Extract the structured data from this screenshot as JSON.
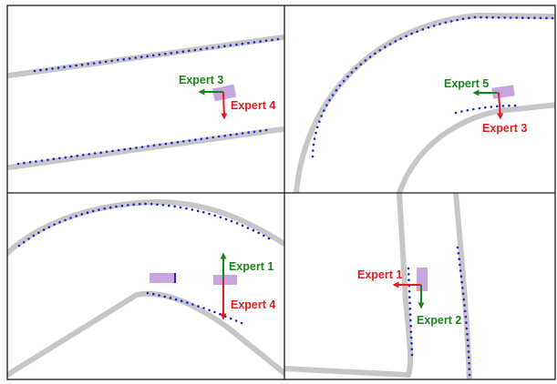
{
  "colors": {
    "red": "#e41a1c",
    "green": "#17861a",
    "blue": "#1f22d8",
    "road": "#bdbdbd",
    "vehicle": "#bb8fd8",
    "frame": "#1a1a1a"
  },
  "panels": [
    {
      "id": "top-left",
      "labels": [
        {
          "text": "Expert 3",
          "color": "green"
        },
        {
          "text": "Expert 4",
          "color": "red"
        }
      ]
    },
    {
      "id": "top-right",
      "labels": [
        {
          "text": "Expert 5",
          "color": "green"
        },
        {
          "text": "Expert 3",
          "color": "red"
        }
      ]
    },
    {
      "id": "bottom-left",
      "labels": [
        {
          "text": "Expert 1",
          "color": "green"
        },
        {
          "text": "Expert 4",
          "color": "red"
        }
      ]
    },
    {
      "id": "bottom-right",
      "labels": [
        {
          "text": "Expert 1",
          "color": "red"
        },
        {
          "text": "Expert 2",
          "color": "green"
        }
      ]
    }
  ]
}
